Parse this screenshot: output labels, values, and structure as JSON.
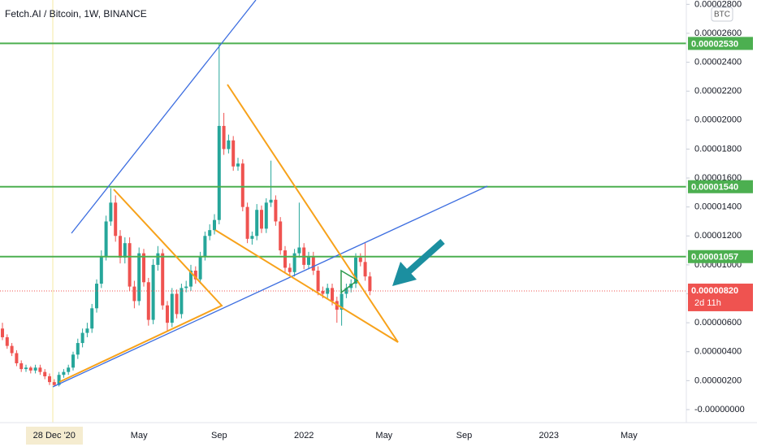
{
  "chart_data": {
    "type": "candlestick",
    "title": "Fetch.AI / Bitcoin, 1W, BINANCE",
    "unit": "BTC",
    "categories": [
      null,
      null,
      null,
      null,
      null,
      null,
      null,
      null,
      null,
      null,
      null,
      "28 Dec '20",
      null,
      null,
      null,
      null,
      null,
      null,
      null,
      null,
      null,
      null,
      null,
      null,
      null,
      null,
      null,
      null,
      null,
      "May",
      null,
      null,
      null,
      null,
      null,
      null,
      null,
      null,
      null,
      null,
      null,
      null,
      null,
      null,
      null,
      null,
      "Sep",
      null,
      null,
      null,
      null,
      null,
      null,
      null,
      null,
      null,
      null,
      null,
      null,
      null,
      null,
      null,
      null,
      null,
      "2022",
      null,
      null,
      null,
      null,
      null,
      null,
      null,
      null,
      null,
      null,
      null,
      null,
      null,
      null,
      null,
      null,
      "May",
      null,
      null,
      null,
      null,
      null,
      null,
      null,
      null,
      null,
      null,
      null,
      null,
      null,
      null,
      null,
      null,
      "Sep",
      null,
      null,
      null,
      null,
      null,
      null,
      null,
      null,
      null,
      null,
      null,
      null,
      null,
      null,
      null,
      null,
      null,
      "2023",
      null,
      null,
      null,
      null,
      null,
      null,
      null,
      null,
      null,
      null,
      null,
      null,
      null,
      null,
      null,
      null,
      "May"
    ],
    "open": [
      5.6e-06,
      5e-06,
      4.4e-06,
      3.9e-06,
      3.2e-06,
      2.8e-06,
      2.9e-06,
      2.7e-06,
      2.9e-06,
      2.6e-06,
      2.3e-06,
      1.9e-06,
      1.7e-06,
      2.4e-06,
      2.6e-06,
      2.9e-06,
      3.8e-06,
      4.6e-06,
      5.3e-06,
      5.6e-06,
      7e-06,
      8.7e-06,
      1.06e-05,
      1.3e-05,
      1.43e-05,
      1.2e-05,
      1.05e-05,
      1.15e-05,
      8.5e-06,
      7.5e-06,
      1.08e-05,
      8.8e-06,
      6.2e-06,
      1e-05,
      1.08e-05,
      7.2e-06,
      6e-06,
      8e-06,
      6.6e-06,
      8.4e-06,
      8.5e-06,
      9.6e-06,
      9e-06,
      1.06e-05,
      1.2e-05,
      1.24e-05,
      1.31e-05,
      1.96e-05,
      1.8e-05,
      1.86e-05,
      1.68e-05,
      1.7e-05,
      1.4e-05,
      1.18e-05,
      1.2e-05,
      1.38e-05,
      1.25e-05,
      1.43e-05,
      1.45e-05,
      1.3e-05,
      1.1e-05,
      9.8e-06,
      9.5e-06,
      1.08e-05,
      1.12e-05,
      1e-05,
      1.06e-05,
      9.6e-06,
      8.2e-06,
      8e-06,
      8.4e-06,
      7.5e-06,
      6.9e-06,
      8e-06,
      8.4e-06,
      8.7e-06,
      1.05e-05,
      1.02e-05,
      9.2e-06,
      null,
      null,
      null,
      null,
      null,
      null,
      null,
      null,
      null,
      null,
      null,
      null,
      null,
      null,
      null,
      null,
      null,
      null,
      null,
      null,
      null,
      null,
      null,
      null,
      null,
      null,
      null,
      null,
      null,
      null,
      null,
      null,
      null,
      null,
      null,
      null,
      null,
      null,
      null,
      null,
      null,
      null,
      null,
      null,
      null,
      null,
      null,
      null,
      null,
      null,
      null,
      null,
      null,
      null,
      null
    ],
    "high": [
      6e-06,
      5.2e-06,
      4.6e-06,
      4.1e-06,
      3.4e-06,
      3.1e-06,
      3e-06,
      3.1e-06,
      3.1e-06,
      2.8e-06,
      2.5e-06,
      2.1e-06,
      2.6e-06,
      2.8e-06,
      3.1e-06,
      4e-06,
      4.9e-06,
      5.6e-06,
      6e-06,
      7.3e-06,
      9e-06,
      1.1e-05,
      1.34e-05,
      1.53e-05,
      1.48e-05,
      1.24e-05,
      1.19e-05,
      1.19e-05,
      8.9e-06,
      1.12e-05,
      1.11e-05,
      9.1e-06,
      1.04e-05,
      1.13e-05,
      1.11e-05,
      7.5e-06,
      8.4e-06,
      8.3e-06,
      8.7e-06,
      8.9e-06,
      1e-05,
      9.9e-06,
      1.09e-05,
      1.23e-05,
      1.28e-05,
      1.35e-05,
      2.53e-05,
      2.05e-05,
      1.9e-05,
      1.89e-05,
      1.74e-05,
      1.73e-05,
      1.43e-05,
      1.23e-05,
      1.42e-05,
      1.41e-05,
      1.46e-05,
      1.72e-05,
      1.48e-05,
      1.33e-05,
      1.13e-05,
      1.01e-05,
      1.11e-05,
      1.43e-05,
      1.15e-05,
      1.09e-05,
      1.09e-05,
      9.9e-06,
      8.5e-06,
      8.7e-06,
      8.7e-06,
      7.8e-06,
      8.3e-06,
      8.7e-06,
      9e-06,
      1.08e-05,
      1.08e-05,
      1.15e-05,
      9.5e-06,
      null,
      null,
      null,
      null,
      null,
      null,
      null,
      null,
      null,
      null,
      null,
      null,
      null,
      null,
      null,
      null,
      null,
      null,
      null,
      null,
      null,
      null,
      null,
      null,
      null,
      null,
      null,
      null,
      null,
      null,
      null,
      null,
      null,
      null,
      null,
      null,
      null,
      null,
      null,
      null,
      null,
      null,
      null,
      null,
      null,
      null,
      null,
      null,
      null,
      null,
      null,
      null,
      null,
      null,
      null
    ],
    "low": [
      4.8e-06,
      4.2e-06,
      3.7e-06,
      3e-06,
      2.6e-06,
      2.6e-06,
      2.5e-06,
      2.5e-06,
      2.4e-06,
      2.1e-06,
      1.7e-06,
      1.6e-06,
      1.6e-06,
      2.2e-06,
      2.4e-06,
      2.7e-06,
      3.5e-06,
      4.3e-06,
      5e-06,
      5.3e-06,
      6.7e-06,
      8.4e-06,
      1.03e-05,
      1.27e-05,
      1.16e-05,
      1.01e-05,
      1.01e-05,
      8.2e-06,
      7e-06,
      7.2e-06,
      8.5e-06,
      5.8e-06,
      5.9e-06,
      9.6e-06,
      6.9e-06,
      5.4e-06,
      5.7e-06,
      6.3e-06,
      6.3e-06,
      8.1e-06,
      8.2e-06,
      8.7e-06,
      8.7e-06,
      1.03e-05,
      1.17e-05,
      1.21e-05,
      1.28e-05,
      1.76e-05,
      1.77e-05,
      1.65e-05,
      1.65e-05,
      1.37e-05,
      1.15e-05,
      1.14e-05,
      1.17e-05,
      1.22e-05,
      1.22e-05,
      1.4e-05,
      1.27e-05,
      1.07e-05,
      9.5e-06,
      9.2e-06,
      9.2e-06,
      1.05e-05,
      9.7e-06,
      9.7e-06,
      9.3e-06,
      7.9e-06,
      7.7e-06,
      7.7e-06,
      7.2e-06,
      6e-06,
      5.8e-06,
      7.7e-06,
      8.1e-06,
      8.4e-06,
      9.9e-06,
      8.9e-06,
      7.9e-06,
      null,
      null,
      null,
      null,
      null,
      null,
      null,
      null,
      null,
      null,
      null,
      null,
      null,
      null,
      null,
      null,
      null,
      null,
      null,
      null,
      null,
      null,
      null,
      null,
      null,
      null,
      null,
      null,
      null,
      null,
      null,
      null,
      null,
      null,
      null,
      null,
      null,
      null,
      null,
      null,
      null,
      null,
      null,
      null,
      null,
      null,
      null,
      null,
      null,
      null,
      null,
      null,
      null,
      null,
      null
    ],
    "close": [
      5e-06,
      4.4e-06,
      3.9e-06,
      3.2e-06,
      2.8e-06,
      2.9e-06,
      2.7e-06,
      2.9e-06,
      2.6e-06,
      2.3e-06,
      1.9e-06,
      1.7e-06,
      2.4e-06,
      2.6e-06,
      2.9e-06,
      3.8e-06,
      4.6e-06,
      5.3e-06,
      5.6e-06,
      7e-06,
      8.7e-06,
      1.06e-05,
      1.3e-05,
      1.43e-05,
      1.2e-05,
      1.05e-05,
      1.15e-05,
      8.5e-06,
      7.5e-06,
      1.08e-05,
      8.8e-06,
      6.2e-06,
      1e-05,
      1.08e-05,
      7.2e-06,
      6e-06,
      8e-06,
      6.6e-06,
      8.4e-06,
      8.5e-06,
      9.6e-06,
      9e-06,
      1.06e-05,
      1.2e-05,
      1.24e-05,
      1.31e-05,
      1.96e-05,
      1.8e-05,
      1.86e-05,
      1.68e-05,
      1.7e-05,
      1.4e-05,
      1.18e-05,
      1.2e-05,
      1.38e-05,
      1.25e-05,
      1.43e-05,
      1.45e-05,
      1.3e-05,
      1.1e-05,
      9.8e-06,
      9.5e-06,
      1.08e-05,
      1.12e-05,
      1e-05,
      1.06e-05,
      9.6e-06,
      8.2e-06,
      8e-06,
      8.4e-06,
      7.5e-06,
      6.9e-06,
      8e-06,
      8.4e-06,
      8.7e-06,
      1.05e-05,
      1.02e-05,
      9.2e-06,
      8.2e-06,
      null,
      null,
      null,
      null,
      null,
      null,
      null,
      null,
      null,
      null,
      null,
      null,
      null,
      null,
      null,
      null,
      null,
      null,
      null,
      null,
      null,
      null,
      null,
      null,
      null,
      null,
      null,
      null,
      null,
      null,
      null,
      null,
      null,
      null,
      null,
      null,
      null,
      null,
      null,
      null,
      null,
      null,
      null,
      null,
      null,
      null,
      null,
      null,
      null,
      null,
      null,
      null,
      null,
      null,
      null
    ],
    "up_color": "#26a69a",
    "down_color": "#ef5350",
    "ylim": [
      -9e-07,
      2.83e-05
    ],
    "yticks": [
      {
        "value": 2.8e-05,
        "label": "0.00002800"
      },
      {
        "value": 2.6e-05,
        "label": "0.00002600"
      },
      {
        "value": 2.4e-05,
        "label": "0.00002400"
      },
      {
        "value": 2.2e-05,
        "label": "0.00002200"
      },
      {
        "value": 2e-05,
        "label": "0.00002000"
      },
      {
        "value": 1.8e-05,
        "label": "0.00001800"
      },
      {
        "value": 1.6e-05,
        "label": "0.00001600"
      },
      {
        "value": 1.4e-05,
        "label": "0.00001400"
      },
      {
        "value": 1.2e-05,
        "label": "0.00001200"
      },
      {
        "value": 1e-05,
        "label": "0.00001000"
      },
      {
        "value": 8e-06,
        "label": "0.00000800"
      },
      {
        "value": 6e-06,
        "label": "0.00000600"
      },
      {
        "value": 4e-06,
        "label": "0.00000400"
      },
      {
        "value": 2e-06,
        "label": "0.00000200"
      },
      {
        "value": 0,
        "label": "-0.00000000"
      }
    ],
    "levels": [
      {
        "value": 2.53e-05,
        "label": "0.00002530"
      },
      {
        "value": 1.54e-05,
        "label": "0.00001540"
      },
      {
        "value": 1.057e-05,
        "label": "0.00001057"
      }
    ],
    "level_color": "#4caf50",
    "last_price": {
      "value": 8.2e-06,
      "label": "0.00000820",
      "countdown": "2d 11h"
    }
  }
}
